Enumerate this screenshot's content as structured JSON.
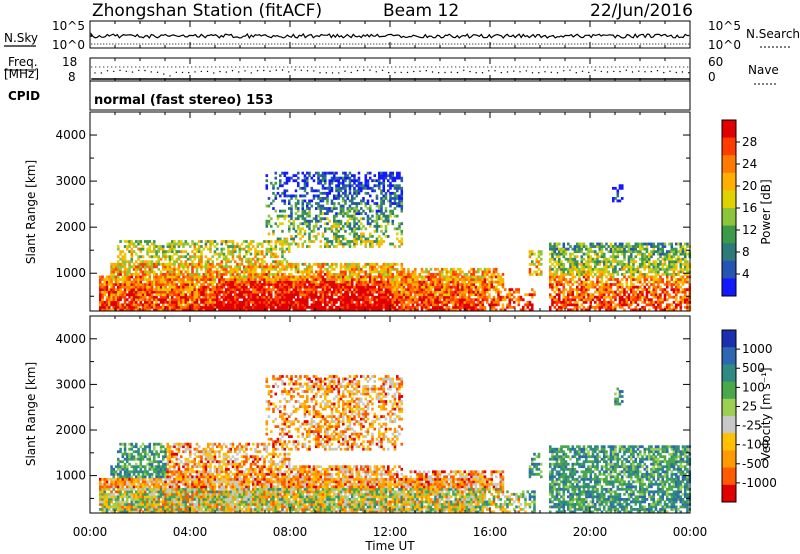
{
  "header": {
    "station_title": "Zhongshan Station (fitACF)",
    "beam_label": "Beam 12",
    "date": "22/Jun/2016"
  },
  "top_panels": {
    "nsky_label": "N.Sky",
    "nsearch_label": "N.Search",
    "counts_ticks": [
      "10^5",
      "10^0"
    ],
    "freq_label_1": "Freq.",
    "freq_label_2": "[MHz]",
    "freq_ticks": [
      "18",
      "8"
    ],
    "nave_ticks": [
      "60",
      "0"
    ],
    "nave_label": "Nave",
    "cpid_label": "CPID",
    "cpid_text": "normal (fast stereo) 153"
  },
  "chart_data": [
    {
      "type": "heatmap",
      "name": "power",
      "ylabel": "Slant Range [km]",
      "xlabel": "Time UT",
      "ylim": [
        180,
        4500
      ],
      "xlim": [
        0,
        24
      ],
      "y_ticks": [
        "1000",
        "2000",
        "3000",
        "4000"
      ],
      "x_ticks": [
        "00:00",
        "04:00",
        "08:00",
        "12:00",
        "16:00",
        "20:00",
        "00:00"
      ],
      "colorbar": {
        "label": "Power [dB]",
        "ticks": [
          "28",
          "24",
          "20",
          "16",
          "12",
          "8",
          "4"
        ],
        "colors": [
          "#e00000",
          "#ff3c00",
          "#ff7a00",
          "#ffb000",
          "#e0d200",
          "#8cc43c",
          "#3c9a4a",
          "#2e7a7a",
          "#2454b4",
          "#1418ff"
        ]
      }
    },
    {
      "type": "heatmap",
      "name": "velocity",
      "ylabel": "Slant Range [km]",
      "xlabel": "Time UT",
      "ylim": [
        180,
        4500
      ],
      "xlim": [
        0,
        24
      ],
      "y_ticks": [
        "1000",
        "2000",
        "3000",
        "4000"
      ],
      "x_ticks": [
        "00:00",
        "04:00",
        "08:00",
        "12:00",
        "16:00",
        "20:00",
        "00:00"
      ],
      "colorbar": {
        "label": "Velocity [m s⁻¹]",
        "ticks": [
          "1000",
          "500",
          "100",
          "25",
          "-25",
          "-100",
          "-500",
          "-1000"
        ],
        "colors": [
          "#1a2fb0",
          "#2f66b0",
          "#2f8a82",
          "#4aa84a",
          "#9ccf52",
          "#c8c8c8",
          "#ffc000",
          "#ff9a00",
          "#ff5a00",
          "#e00000"
        ]
      }
    }
  ]
}
